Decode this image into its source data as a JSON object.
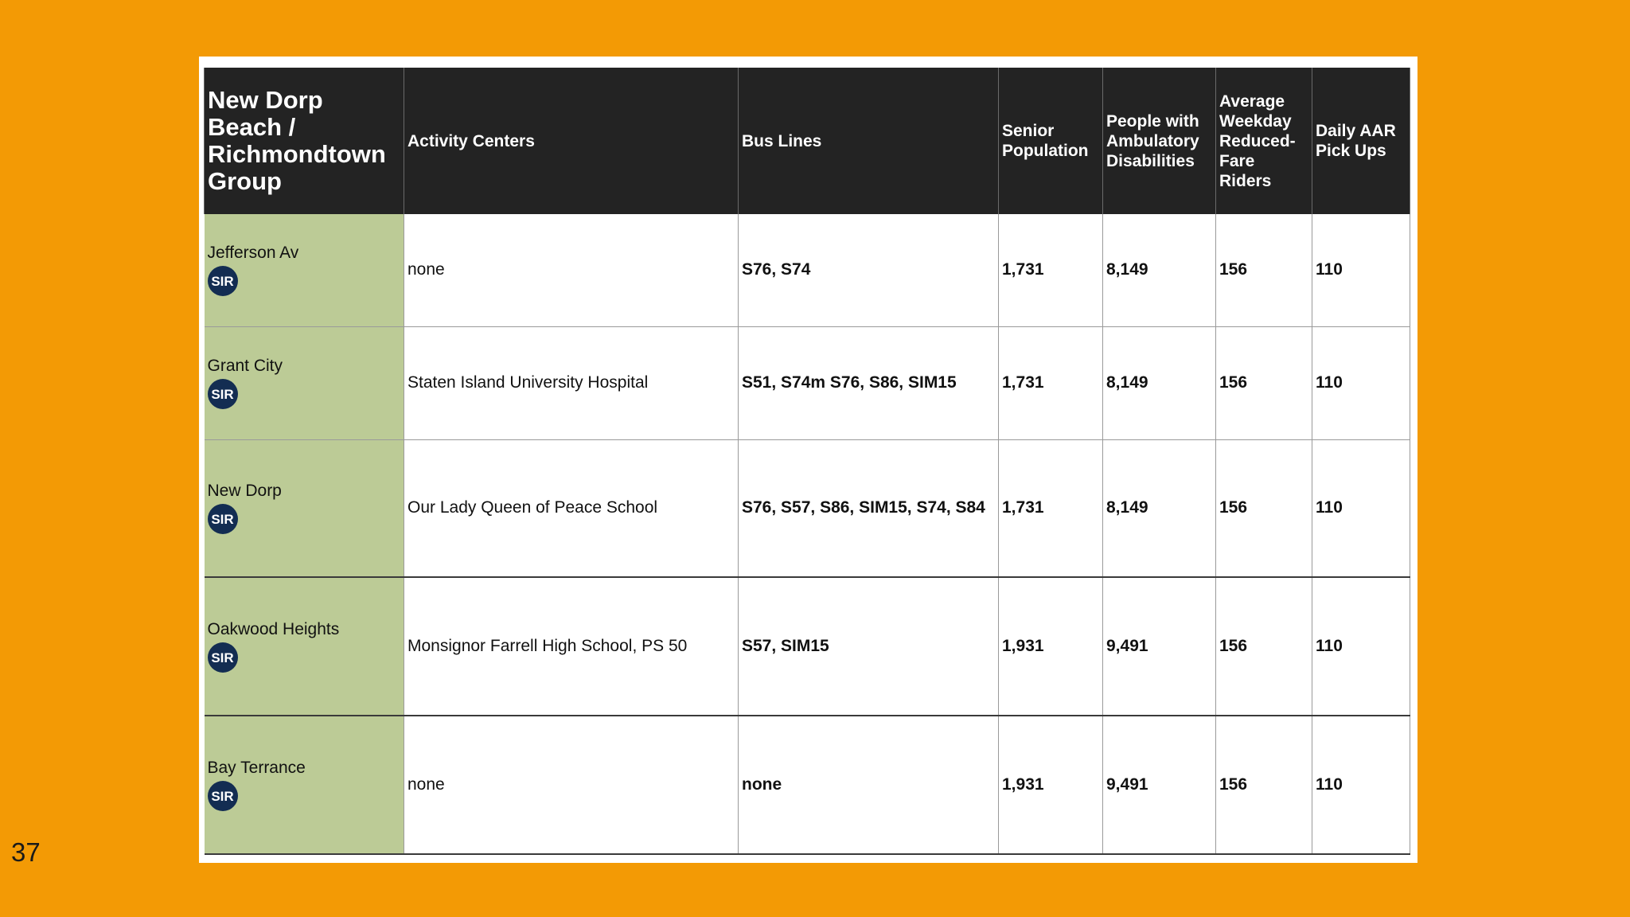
{
  "page_number": "37",
  "table": {
    "headers": [
      "New Dorp Beach / Richmondtown Group",
      "Activity Centers",
      "Bus Lines",
      "Senior Population",
      "People with Ambulatory Disabilities",
      "Average Weekday Reduced-Fare Riders",
      "Daily AAR Pick Ups"
    ],
    "badge_label": "SIR",
    "rows": [
      {
        "station": "Jefferson Av",
        "activity": "none",
        "bus": "S76, S74",
        "senior": "1,731",
        "ambulatory": "8,149",
        "reduced_fare": "156",
        "aar": "110"
      },
      {
        "station": "Grant City",
        "activity": "Staten Island University Hospital",
        "bus": "S51, S74m S76, S86, SIM15",
        "senior": "1,731",
        "ambulatory": "8,149",
        "reduced_fare": "156",
        "aar": "110"
      },
      {
        "station": "New Dorp",
        "activity": "Our Lady Queen of Peace School",
        "bus": "S76, S57, S86, SIM15, S74, S84",
        "senior": "1,731",
        "ambulatory": "8,149",
        "reduced_fare": "156",
        "aar": "110"
      },
      {
        "station": "Oakwood Heights",
        "activity": "Monsignor Farrell High School, PS 50",
        "bus": "S57, SIM15",
        "senior": "1,931",
        "ambulatory": "9,491",
        "reduced_fare": "156",
        "aar": "110"
      },
      {
        "station": "Bay Terrance",
        "activity": "none",
        "bus": "none",
        "senior": "1,931",
        "ambulatory": "9,491",
        "reduced_fare": "156",
        "aar": "110"
      }
    ]
  },
  "colors": {
    "background": "#F39A05",
    "header_bg": "#232323",
    "station_cell_bg": "#BCCB96",
    "badge_bg": "#132D52"
  }
}
